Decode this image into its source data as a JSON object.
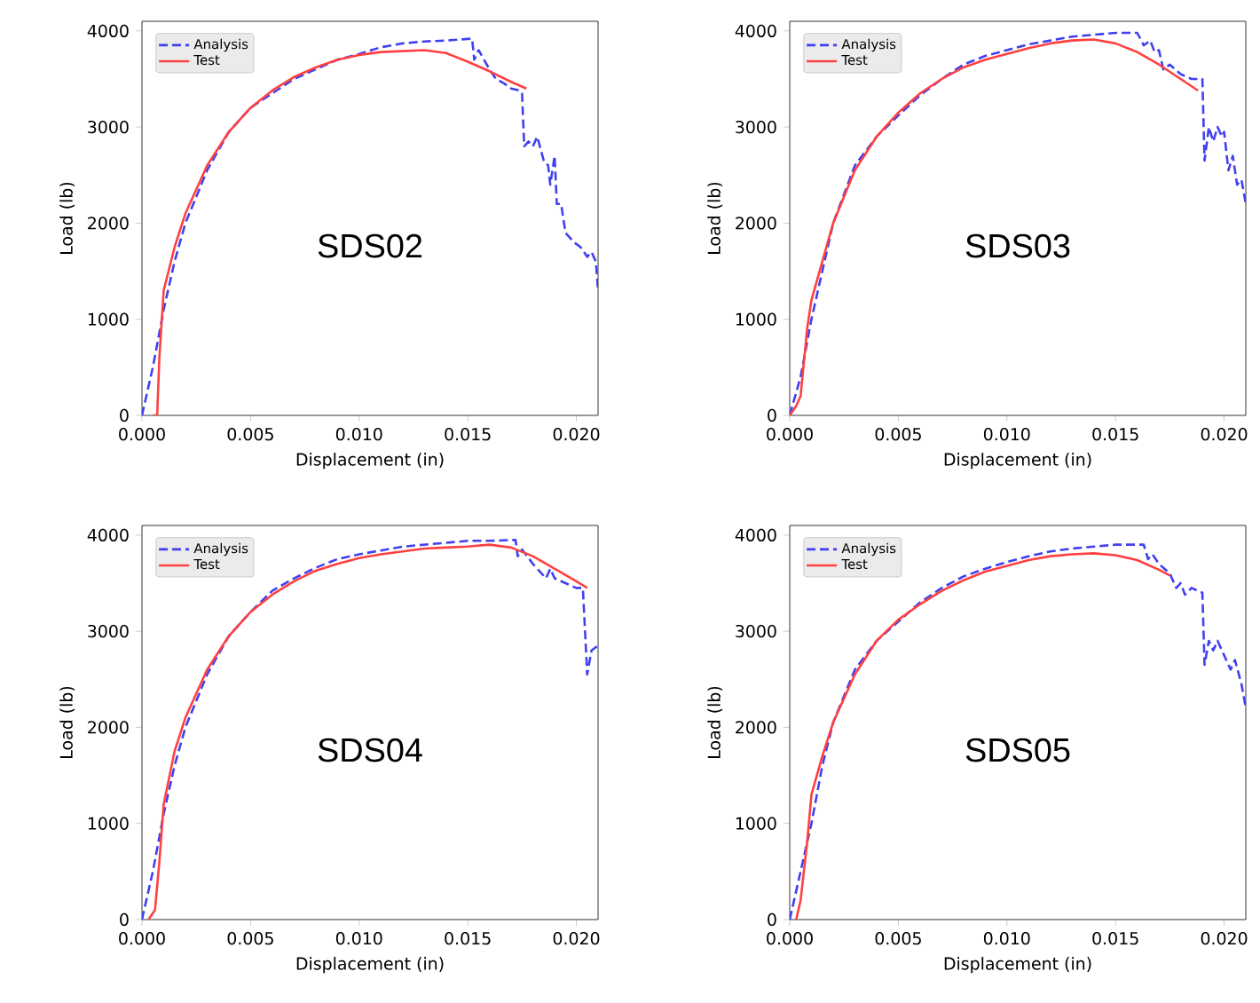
{
  "chart_data": [
    {
      "type": "line",
      "xlabel": "Displacement (in)",
      "ylabel": "Load (lb)",
      "annotations": [
        "SDS02"
      ],
      "legend": "top left",
      "xlim": [
        0,
        0.021
      ],
      "ylim": [
        0,
        4100
      ],
      "xticks": [
        {
          "value": 0,
          "label": "0.000"
        },
        {
          "value": 0.005,
          "label": "0.005"
        },
        {
          "value": 0.01,
          "label": "0.010"
        },
        {
          "value": 0.015,
          "label": "0.015"
        },
        {
          "value": 0.02,
          "label": "0.020"
        }
      ],
      "yticks": [
        0,
        1000,
        2000,
        3000,
        4000
      ],
      "series": [
        {
          "name": "Analysis",
          "color": "#4040f0",
          "line_style": "dashed",
          "x": [
            0,
            0.0005,
            0.001,
            0.0015,
            0.002,
            0.003,
            0.004,
            0.005,
            0.007,
            0.009,
            0.01,
            0.011,
            0.012,
            0.013,
            0.014,
            0.0152,
            0.0153,
            0.0155,
            0.0157,
            0.016,
            0.0163,
            0.0167,
            0.017,
            0.0174,
            0.0175,
            0.0176,
            0.0178,
            0.018,
            0.0182,
            0.0185,
            0.0187,
            0.0188,
            0.019,
            0.0191,
            0.0193,
            0.0195,
            0.0197,
            0.0199,
            0.0202,
            0.0205,
            0.0207,
            0.0209,
            0.021
          ],
          "values": [
            0,
            500,
            1100,
            1600,
            2000,
            2550,
            2950,
            3200,
            3500,
            3700,
            3760,
            3830,
            3870,
            3890,
            3900,
            3920,
            3700,
            3800,
            3720,
            3600,
            3500,
            3450,
            3400,
            3380,
            3350,
            2800,
            2850,
            2800,
            2900,
            2650,
            2600,
            2400,
            2700,
            2200,
            2200,
            1900,
            1850,
            1800,
            1750,
            1650,
            1700,
            1600,
            1300
          ]
        },
        {
          "name": "Test",
          "color": "#ff4040",
          "line_style": "solid",
          "x": [
            0.0005,
            0.0007,
            0.0008,
            0.001,
            0.0015,
            0.002,
            0.003,
            0.004,
            0.005,
            0.006,
            0.007,
            0.008,
            0.009,
            0.01,
            0.011,
            0.012,
            0.013,
            0.014,
            0.015,
            0.016,
            0.017,
            0.0177
          ],
          "values": [
            0,
            0,
            600,
            1300,
            1750,
            2100,
            2600,
            2950,
            3200,
            3380,
            3520,
            3620,
            3700,
            3750,
            3780,
            3790,
            3800,
            3770,
            3680,
            3580,
            3470,
            3400
          ]
        }
      ]
    },
    {
      "type": "line",
      "xlabel": "Displacement (in)",
      "ylabel": "Load (lb)",
      "annotations": [
        "SDS03"
      ],
      "legend": "top left",
      "xlim": [
        0,
        0.021
      ],
      "ylim": [
        0,
        4100
      ],
      "xticks": [
        {
          "value": 0,
          "label": "0.000"
        },
        {
          "value": 0.005,
          "label": "0.005"
        },
        {
          "value": 0.01,
          "label": "0.010"
        },
        {
          "value": 0.015,
          "label": "0.015"
        },
        {
          "value": 0.02,
          "label": "0.020"
        }
      ],
      "yticks": [
        0,
        1000,
        2000,
        3000,
        4000
      ],
      "series": [
        {
          "name": "Analysis",
          "color": "#4040f0",
          "line_style": "dashed",
          "x": [
            0,
            0.0005,
            0.001,
            0.0015,
            0.002,
            0.003,
            0.004,
            0.005,
            0.006,
            0.007,
            0.008,
            0.009,
            0.01,
            0.011,
            0.012,
            0.013,
            0.014,
            0.015,
            0.016,
            0.0163,
            0.0166,
            0.0168,
            0.017,
            0.0172,
            0.0175,
            0.018,
            0.0185,
            0.019,
            0.0191,
            0.0193,
            0.0195,
            0.0197,
            0.0199,
            0.02,
            0.0202,
            0.0204,
            0.0206,
            0.0208,
            0.021
          ],
          "values": [
            0,
            400,
            1000,
            1500,
            2000,
            2600,
            2900,
            3120,
            3330,
            3500,
            3650,
            3740,
            3800,
            3860,
            3900,
            3940,
            3960,
            3980,
            3980,
            3850,
            3900,
            3780,
            3800,
            3600,
            3650,
            3550,
            3500,
            3500,
            2650,
            3000,
            2850,
            3000,
            2900,
            2950,
            2550,
            2700,
            2400,
            2450,
            2200
          ]
        },
        {
          "name": "Test",
          "color": "#ff4040",
          "line_style": "solid",
          "x": [
            0,
            0.0003,
            0.0005,
            0.0008,
            0.001,
            0.0015,
            0.002,
            0.003,
            0.004,
            0.005,
            0.006,
            0.007,
            0.008,
            0.009,
            0.01,
            0.011,
            0.012,
            0.013,
            0.014,
            0.015,
            0.016,
            0.017,
            0.018,
            0.0188
          ],
          "values": [
            0,
            100,
            200,
            900,
            1200,
            1600,
            2000,
            2550,
            2900,
            3150,
            3350,
            3500,
            3620,
            3700,
            3760,
            3820,
            3870,
            3900,
            3910,
            3870,
            3780,
            3650,
            3500,
            3380
          ]
        }
      ]
    },
    {
      "type": "line",
      "xlabel": "Displacement (in)",
      "ylabel": "Load (lb)",
      "annotations": [
        "SDS04"
      ],
      "legend": "top left",
      "xlim": [
        0,
        0.021
      ],
      "ylim": [
        0,
        4100
      ],
      "xticks": [
        {
          "value": 0,
          "label": "0.000"
        },
        {
          "value": 0.005,
          "label": "0.005"
        },
        {
          "value": 0.01,
          "label": "0.010"
        },
        {
          "value": 0.015,
          "label": "0.015"
        },
        {
          "value": 0.02,
          "label": "0.020"
        }
      ],
      "yticks": [
        0,
        1000,
        2000,
        3000,
        4000
      ],
      "series": [
        {
          "name": "Analysis",
          "color": "#4040f0",
          "line_style": "dashed",
          "x": [
            0,
            0.0005,
            0.001,
            0.0015,
            0.002,
            0.003,
            0.004,
            0.005,
            0.006,
            0.007,
            0.008,
            0.009,
            0.01,
            0.011,
            0.012,
            0.013,
            0.014,
            0.015,
            0.016,
            0.0172,
            0.0173,
            0.0175,
            0.018,
            0.0186,
            0.0188,
            0.019,
            0.0195,
            0.02,
            0.0203,
            0.0205,
            0.0207,
            0.021
          ],
          "values": [
            0,
            500,
            1100,
            1600,
            2000,
            2550,
            2950,
            3200,
            3420,
            3550,
            3660,
            3750,
            3800,
            3840,
            3880,
            3900,
            3920,
            3940,
            3940,
            3950,
            3780,
            3850,
            3700,
            3550,
            3650,
            3550,
            3500,
            3450,
            3450,
            2550,
            2800,
            2850
          ]
        },
        {
          "name": "Test",
          "color": "#ff4040",
          "line_style": "solid",
          "x": [
            0.0003,
            0.0006,
            0.0008,
            0.001,
            0.0015,
            0.002,
            0.003,
            0.004,
            0.005,
            0.006,
            0.007,
            0.008,
            0.009,
            0.01,
            0.011,
            0.012,
            0.013,
            0.014,
            0.015,
            0.016,
            0.017,
            0.018,
            0.019,
            0.02,
            0.0205
          ],
          "values": [
            0,
            100,
            600,
            1200,
            1750,
            2100,
            2600,
            2950,
            3200,
            3380,
            3520,
            3630,
            3700,
            3760,
            3800,
            3830,
            3860,
            3870,
            3880,
            3900,
            3870,
            3780,
            3650,
            3520,
            3450
          ]
        }
      ]
    },
    {
      "type": "line",
      "xlabel": "Displacement (in)",
      "ylabel": "Load (lb)",
      "annotations": [
        "SDS05"
      ],
      "legend": "top left",
      "xlim": [
        0,
        0.021
      ],
      "ylim": [
        0,
        4100
      ],
      "xticks": [
        {
          "value": 0,
          "label": "0.000"
        },
        {
          "value": 0.005,
          "label": "0.005"
        },
        {
          "value": 0.01,
          "label": "0.010"
        },
        {
          "value": 0.015,
          "label": "0.015"
        },
        {
          "value": 0.02,
          "label": "0.020"
        }
      ],
      "yticks": [
        0,
        1000,
        2000,
        3000,
        4000
      ],
      "series": [
        {
          "name": "Analysis",
          "color": "#4040f0",
          "line_style": "dashed",
          "x": [
            0,
            0.0005,
            0.001,
            0.0015,
            0.002,
            0.003,
            0.004,
            0.005,
            0.006,
            0.007,
            0.008,
            0.009,
            0.01,
            0.011,
            0.012,
            0.013,
            0.014,
            0.015,
            0.0163,
            0.0165,
            0.0167,
            0.017,
            0.0175,
            0.0178,
            0.018,
            0.0182,
            0.0185,
            0.019,
            0.0191,
            0.0193,
            0.0195,
            0.0197,
            0.02,
            0.0203,
            0.0205,
            0.0208,
            0.021
          ],
          "values": [
            0,
            500,
            1000,
            1600,
            2050,
            2600,
            2900,
            3100,
            3300,
            3450,
            3570,
            3650,
            3720,
            3780,
            3830,
            3860,
            3880,
            3900,
            3900,
            3750,
            3800,
            3700,
            3600,
            3450,
            3500,
            3380,
            3450,
            3400,
            2650,
            2900,
            2800,
            2900,
            2750,
            2600,
            2700,
            2450,
            2200
          ]
        },
        {
          "name": "Test",
          "color": "#ff4040",
          "line_style": "solid",
          "x": [
            0.0003,
            0.0005,
            0.0008,
            0.001,
            0.0015,
            0.002,
            0.003,
            0.004,
            0.005,
            0.006,
            0.007,
            0.008,
            0.009,
            0.01,
            0.011,
            0.012,
            0.013,
            0.014,
            0.015,
            0.016,
            0.017,
            0.0175
          ],
          "values": [
            0,
            200,
            800,
            1300,
            1700,
            2050,
            2550,
            2900,
            3120,
            3280,
            3420,
            3530,
            3620,
            3680,
            3740,
            3780,
            3800,
            3810,
            3790,
            3740,
            3640,
            3580
          ]
        }
      ]
    }
  ]
}
